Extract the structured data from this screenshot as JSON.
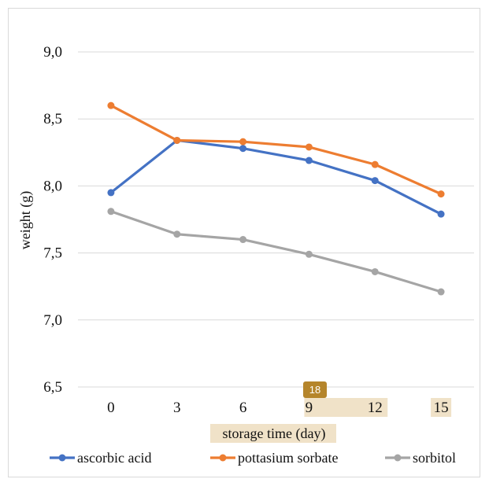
{
  "chart_data": {
    "type": "line",
    "x": [
      "0",
      "3",
      "6",
      "9",
      "12",
      "15"
    ],
    "series": [
      {
        "name": "ascorbic acid",
        "color": "#4472c4",
        "values": [
          7.95,
          8.34,
          8.28,
          8.19,
          8.04,
          7.79
        ]
      },
      {
        "name": "pottasium sorbate",
        "color": "#ed7d31",
        "values": [
          8.6,
          8.34,
          8.33,
          8.29,
          8.16,
          7.94
        ]
      },
      {
        "name": "sorbitol",
        "color": "#a5a5a5",
        "values": [
          7.81,
          7.64,
          7.6,
          7.49,
          7.36,
          7.21
        ]
      }
    ],
    "xlabel": "storage time (day)",
    "ylabel": "weight (g)",
    "ylim": [
      6.5,
      9.0
    ],
    "yticks": [
      "6,5",
      "7,0",
      "7,5",
      "8,0",
      "8,5",
      "9,0"
    ],
    "grid": true,
    "legend": "bottom"
  },
  "overlay": {
    "badge_label": "18",
    "badge_color": "#b5852b",
    "highlight_color": "#f0e2c8"
  }
}
